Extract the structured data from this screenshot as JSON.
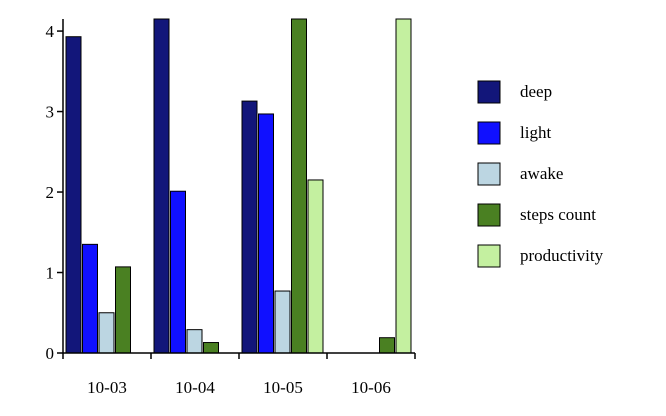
{
  "chart_data": {
    "type": "bar",
    "title": "",
    "xlabel": "",
    "ylabel": "",
    "ylim": [
      0,
      4.15
    ],
    "yticks": [
      0,
      1,
      2,
      3,
      4
    ],
    "categories": [
      "10-03",
      "10-04",
      "10-05",
      "10-06"
    ],
    "series": [
      {
        "name": "deep",
        "color": "#12167a",
        "values": [
          3.93,
          4.15,
          3.13,
          0
        ]
      },
      {
        "name": "light",
        "color": "#1010ff",
        "values": [
          1.35,
          2.01,
          2.97,
          0
        ]
      },
      {
        "name": "awake",
        "color": "#bcd6e2",
        "values": [
          0.5,
          0.29,
          0.77,
          0
        ]
      },
      {
        "name": "steps count",
        "color": "#4a8022",
        "values": [
          1.07,
          0.13,
          4.15,
          0.19
        ]
      },
      {
        "name": "productivity",
        "color": "#c4f0a0",
        "values": [
          0,
          0,
          2.15,
          4.15
        ]
      }
    ],
    "legend_position": "right"
  }
}
